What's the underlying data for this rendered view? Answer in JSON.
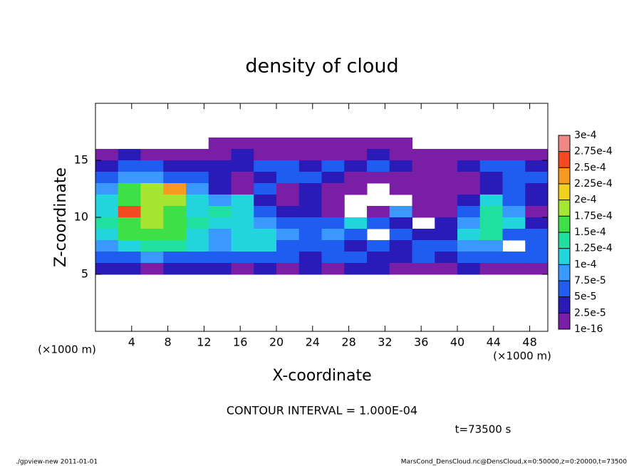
{
  "chart_data": {
    "type": "contour",
    "title": "density of cloud",
    "x_label": "X-coordinate",
    "y_label": "Z-coordinate",
    "x_unit": "(×1000 m)",
    "y_unit": "(×1000 m)",
    "contour_note": "CONTOUR INTERVAL = 1.000E-04",
    "time_label": "t=73500 s",
    "footer_left": "./gpview-new   2011-01-01",
    "footer_right": "MarsCond_DensCloud.nc@DensCloud,x=0:50000,z=0:20000,t=73500",
    "xlim": [
      0,
      50
    ],
    "ylim": [
      0,
      20
    ],
    "xticks": [
      4,
      8,
      12,
      16,
      20,
      24,
      28,
      32,
      36,
      40,
      44,
      48
    ],
    "yticks": [
      5,
      10,
      15
    ],
    "x": [
      1.25,
      3.75,
      6.25,
      8.75,
      11.25,
      13.75,
      16.25,
      18.75,
      21.25,
      23.75,
      26.25,
      28.75,
      31.25,
      33.75,
      36.25,
      38.75,
      41.25,
      43.75,
      46.25,
      48.75
    ],
    "z": [
      16.5,
      15.5,
      14.5,
      13.5,
      12.5,
      11.5,
      10.5,
      9.5,
      8.5,
      7.5,
      6.5,
      5.5
    ],
    "values": [
      [
        null,
        null,
        null,
        null,
        null,
        1e-06,
        1e-06,
        1e-06,
        1e-06,
        1e-06,
        1e-06,
        1e-06,
        1e-06,
        1e-06,
        null,
        null,
        null,
        null,
        null,
        null
      ],
      [
        2e-05,
        3e-05,
        2e-05,
        2e-05,
        2e-05,
        1e-06,
        3e-05,
        1e-06,
        2e-05,
        1e-06,
        2e-05,
        1e-06,
        3e-05,
        2e-05,
        1e-06,
        1e-06,
        2e-05,
        1e-06,
        2e-05,
        1e-06
      ],
      [
        4e-05,
        6e-05,
        5e-05,
        4e-05,
        3e-05,
        4e-05,
        3e-05,
        6e-05,
        5e-05,
        3e-05,
        6e-05,
        4e-05,
        5e-05,
        3e-05,
        2e-05,
        1e-06,
        3e-05,
        5e-05,
        6e-05,
        4e-05
      ],
      [
        6e-05,
        9e-05,
        8e-05,
        7e-05,
        5e-05,
        3e-05,
        2e-05,
        4e-05,
        6e-05,
        5e-05,
        3e-05,
        2e-05,
        1e-06,
        2e-05,
        1e-06,
        1e-06,
        2e-05,
        4e-05,
        7e-05,
        5e-05
      ],
      [
        8e-05,
        0.00016,
        0.00018,
        0.00023,
        9e-05,
        3e-05,
        2e-05,
        5e-05,
        1e-06,
        3e-05,
        2e-05,
        1e-06,
        null,
        1e-06,
        2e-05,
        1e-06,
        1e-06,
        3e-05,
        6e-05,
        4e-05
      ],
      [
        0.00011,
        0.00017,
        0.00018,
        0.00018,
        0.00011,
        9e-05,
        0.00011,
        3e-05,
        2e-05,
        3e-05,
        2e-05,
        null,
        null,
        null,
        1e-06,
        2e-05,
        3e-05,
        0.00012,
        5e-05,
        3e-05
      ],
      [
        0.00012,
        0.00026,
        0.00018,
        0.00017,
        0.00012,
        0.00013,
        0.00012,
        5e-05,
        4e-05,
        3e-05,
        2e-05,
        null,
        2e-05,
        9e-05,
        2e-05,
        1e-06,
        6e-05,
        0.00013,
        8e-05,
        2e-05
      ],
      [
        0.00013,
        0.00017,
        0.00018,
        0.00017,
        0.00013,
        0.00012,
        0.0001,
        8e-05,
        6e-05,
        5e-05,
        6e-05,
        0.00011,
        5e-05,
        4e-05,
        null,
        3e-05,
        8e-05,
        0.00014,
        0.00011,
        4e-05
      ],
      [
        0.0001,
        0.00015,
        0.00017,
        0.00016,
        0.00012,
        9e-05,
        0.00011,
        0.000105,
        8e-05,
        7e-05,
        9e-05,
        6e-05,
        null,
        5e-05,
        4e-05,
        4e-05,
        0.00011,
        0.00013,
        6e-05,
        5e-05
      ],
      [
        8e-05,
        0.00011,
        0.00014,
        0.00013,
        0.0001,
        8e-05,
        0.00011,
        0.0001,
        7e-05,
        6e-05,
        5e-05,
        4e-05,
        5e-05,
        3e-05,
        6e-05,
        5e-05,
        8e-05,
        9e-05,
        null,
        7e-05
      ],
      [
        6e-05,
        7e-05,
        8e-05,
        7e-05,
        6e-05,
        5e-05,
        6e-05,
        7e-05,
        5e-05,
        4e-05,
        6e-05,
        5e-05,
        4e-05,
        3e-05,
        5e-05,
        4e-05,
        5e-05,
        6e-05,
        5e-05,
        6e-05
      ],
      [
        4e-05,
        3e-05,
        2e-05,
        3e-05,
        4e-05,
        3e-05,
        2e-05,
        3e-05,
        2e-05,
        3e-05,
        2e-05,
        3e-05,
        3e-05,
        2e-05,
        2e-05,
        2e-05,
        3e-05,
        2e-05,
        1e-06,
        2e-05
      ]
    ],
    "levels": [
      {
        "value": 1e-16,
        "label": "1e-16"
      },
      {
        "value": 2.5e-05,
        "label": "2.5e-5"
      },
      {
        "value": 5e-05,
        "label": "5e-5"
      },
      {
        "value": 7.5e-05,
        "label": "7.5e-5"
      },
      {
        "value": 0.0001,
        "label": "1e-4"
      },
      {
        "value": 0.000125,
        "label": "1.25e-4"
      },
      {
        "value": 0.00015,
        "label": "1.5e-4"
      },
      {
        "value": 0.000175,
        "label": "1.75e-4"
      },
      {
        "value": 0.0002,
        "label": "2e-4"
      },
      {
        "value": 0.000225,
        "label": "2.25e-4"
      },
      {
        "value": 0.00025,
        "label": "2.5e-4"
      },
      {
        "value": 0.000275,
        "label": "2.75e-4"
      },
      {
        "value": 0.0003,
        "label": "3e-4"
      }
    ],
    "colors": [
      "#7a1ea6",
      "#2a1ab8",
      "#1f5cf0",
      "#3a98ff",
      "#22d4dc",
      "#20e0a0",
      "#3ee048",
      "#a6e632",
      "#f0d020",
      "#f89a20",
      "#f44a22",
      "#f08888"
    ]
  }
}
